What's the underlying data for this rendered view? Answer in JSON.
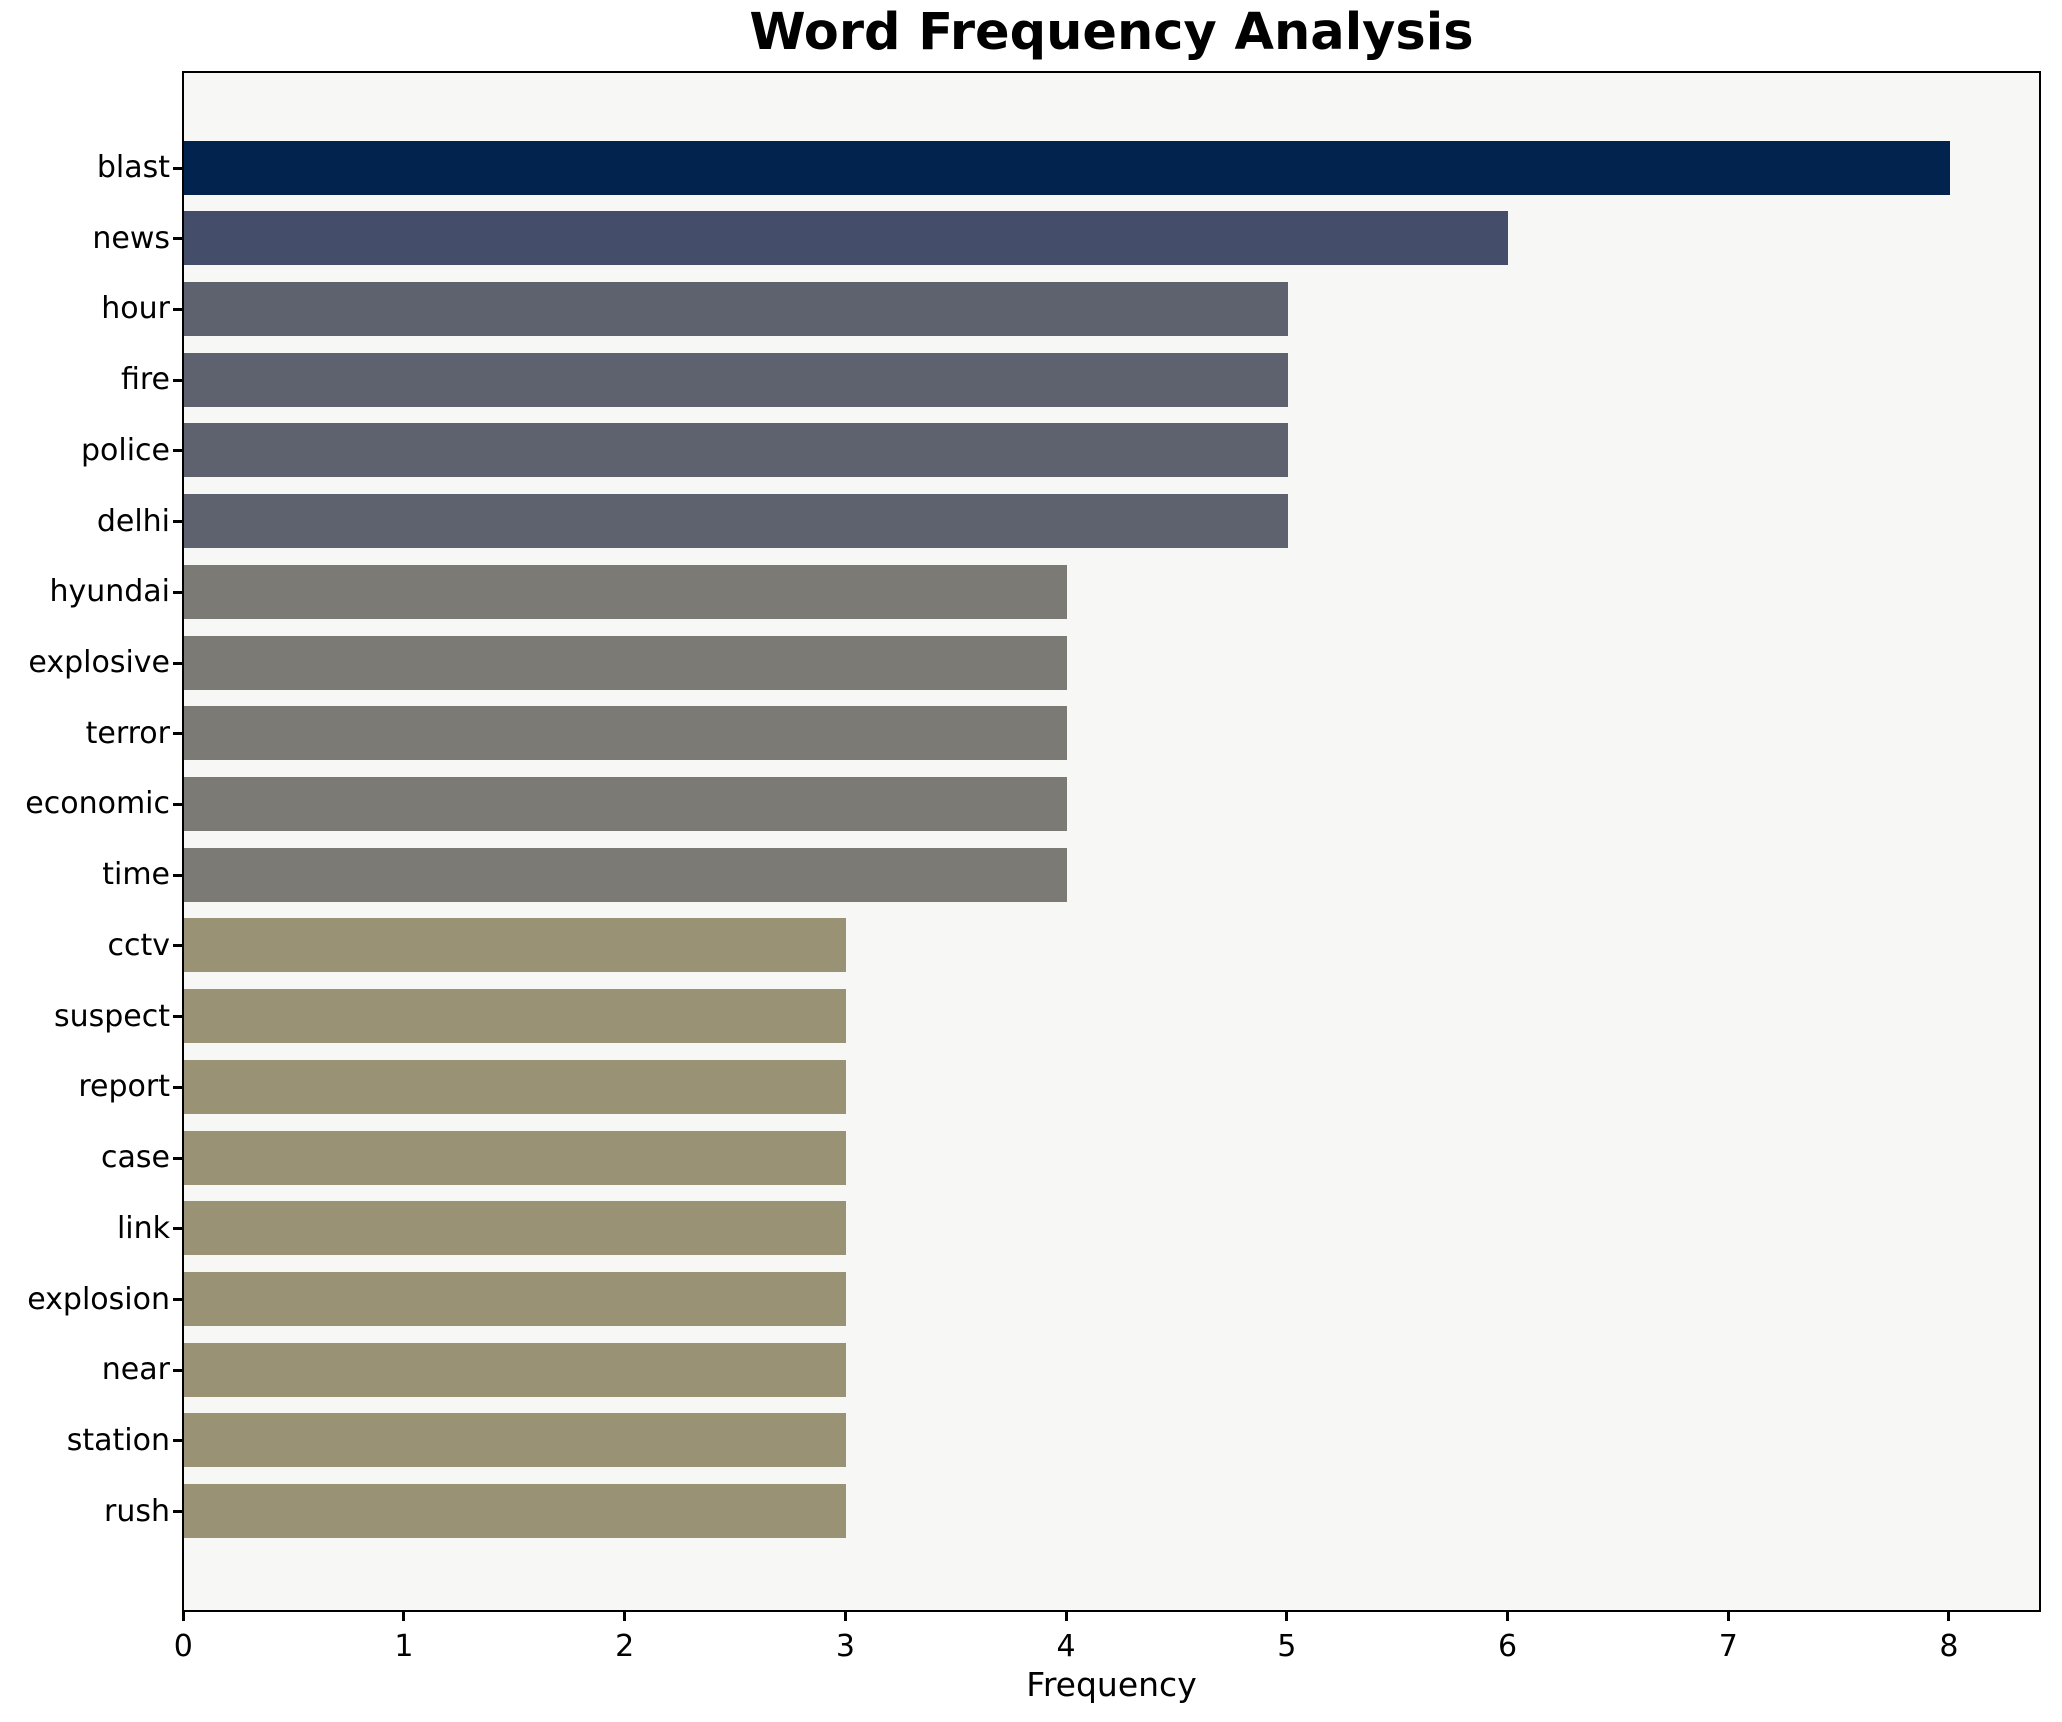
{
  "chart_data": {
    "type": "bar",
    "orientation": "horizontal",
    "title": "Word Frequency Analysis",
    "xlabel": "Frequency",
    "ylabel": "",
    "categories": [
      "blast",
      "news",
      "hour",
      "fire",
      "police",
      "delhi",
      "hyundai",
      "explosive",
      "terror",
      "economic",
      "time",
      "cctv",
      "suspect",
      "report",
      "case",
      "link",
      "explosion",
      "near",
      "station",
      "rush"
    ],
    "values": [
      8,
      6,
      5,
      5,
      5,
      5,
      4,
      4,
      4,
      4,
      4,
      3,
      3,
      3,
      3,
      3,
      3,
      3,
      3,
      3
    ],
    "bar_colors": [
      "#02234d",
      "#444e6b",
      "#5d626e",
      "#5d626e",
      "#5d626e",
      "#5d626e",
      "#7b7a75",
      "#7b7a75",
      "#7b7a75",
      "#7b7a75",
      "#7b7a75",
      "#9a9274",
      "#9a9274",
      "#9a9274",
      "#9a9274",
      "#9a9274",
      "#9a9274",
      "#9a9274",
      "#9a9274",
      "#9a9274"
    ],
    "xticks": [
      0,
      1,
      2,
      3,
      4,
      5,
      6,
      7,
      8
    ],
    "xlim": [
      0,
      8.4
    ],
    "grid": false,
    "legend_shown": false,
    "plot_background": "#f7f7f5",
    "figure_background": "#ffffff",
    "spine_color": "#000000",
    "text_color": "#000000"
  }
}
